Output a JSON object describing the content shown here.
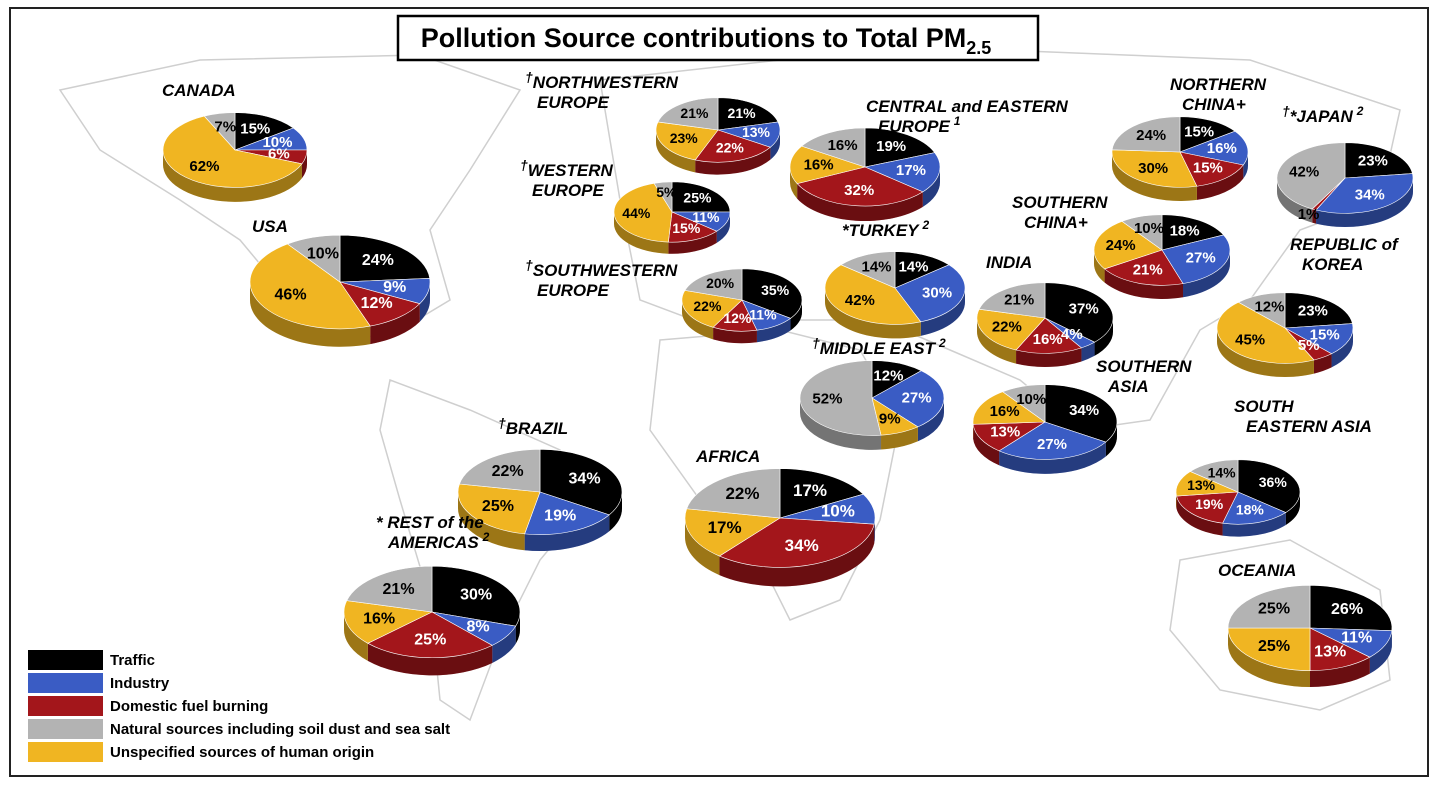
{
  "chart_data": {
    "type": "pie",
    "title": "Pollution Source contributions to Total PM",
    "title_subscript": "2.5",
    "categories": [
      "Traffic",
      "Industry",
      "Domestic fuel burning",
      "Natural sources including soil dust and sea salt",
      "Unspecified sources of human origin"
    ],
    "colors": [
      "#000000",
      "#3a5cc4",
      "#a3161b",
      "#b3b3b3",
      "#f0b522"
    ],
    "regions": [
      {
        "name": [
          "CANADA"
        ],
        "values": [
          15,
          10,
          6,
          7,
          62
        ],
        "value_labels": [
          "15%",
          "10%",
          "6%",
          "7%",
          "62%"
        ]
      },
      {
        "name": [
          "USA"
        ],
        "values": [
          24,
          9,
          12,
          10,
          46
        ],
        "value_labels": [
          "24%",
          "9%",
          "12%",
          "10%",
          "46%"
        ]
      },
      {
        "mark": "†",
        "name": [
          "NORTHWESTERN",
          "EUROPE"
        ],
        "values": [
          21,
          13,
          22,
          21,
          23
        ],
        "value_labels": [
          "21%",
          "13%",
          "22%",
          "21%",
          "23%"
        ]
      },
      {
        "mark": "†",
        "name": [
          "WESTERN",
          "EUROPE"
        ],
        "values": [
          25,
          11,
          15,
          5,
          44
        ],
        "value_labels": [
          "25%",
          "11%",
          "15%",
          "5%",
          "44%"
        ]
      },
      {
        "mark": "†",
        "name": [
          "SOUTHWESTERN",
          "EUROPE"
        ],
        "values": [
          35,
          11,
          12,
          20,
          22
        ],
        "value_labels": [
          "35%",
          "11%",
          "12%",
          "20%",
          "22%"
        ]
      },
      {
        "name": [
          "CENTRAL and EASTERN",
          "EUROPE"
        ],
        "note": "1",
        "values": [
          19,
          17,
          32,
          16,
          16
        ],
        "value_labels": [
          "19%",
          "17%",
          "32%",
          "16%",
          "16%"
        ]
      },
      {
        "name": [
          "*TURKEY"
        ],
        "note": "2",
        "values": [
          14,
          30,
          null,
          14,
          42
        ],
        "value_labels": [
          "14%",
          "30%",
          null,
          "14%",
          "42%"
        ]
      },
      {
        "mark": "†",
        "name": [
          "MIDDLE EAST"
        ],
        "note": "2",
        "values": [
          12,
          27,
          null,
          52,
          9
        ],
        "value_labels": [
          "12%",
          "27%",
          null,
          "52%",
          "9%"
        ]
      },
      {
        "name": [
          "NORTHERN",
          "CHINA+"
        ],
        "values": [
          15,
          16,
          15,
          24,
          30
        ],
        "value_labels": [
          "15%",
          "16%",
          "15%",
          "24%",
          "30%"
        ]
      },
      {
        "mark": "†",
        "name": [
          "*JAPAN"
        ],
        "note": "2",
        "values": [
          23,
          34,
          1,
          42,
          null
        ],
        "value_labels": [
          "23%",
          "34%",
          "1%",
          "42%",
          null
        ]
      },
      {
        "name": [
          "SOUTHERN",
          "CHINA+"
        ],
        "values": [
          18,
          27,
          21,
          10,
          24
        ],
        "value_labels": [
          "18%",
          "27%",
          "21%",
          "10%",
          "24%"
        ]
      },
      {
        "name": [
          "INDIA"
        ],
        "values": [
          37,
          4,
          16,
          21,
          22
        ],
        "value_labels": [
          "37%",
          "4%",
          "16%",
          "21%",
          "22%"
        ]
      },
      {
        "name": [
          "REPUBLIC of",
          "KOREA"
        ],
        "values": [
          23,
          15,
          5,
          12,
          45
        ],
        "value_labels": [
          "23%",
          "15%",
          "5%",
          "12%",
          "45%"
        ]
      },
      {
        "name": [
          "SOUTHERN",
          "ASIA"
        ],
        "values": [
          34,
          27,
          13,
          10,
          16
        ],
        "value_labels": [
          "34%",
          "27%",
          "13%",
          "10%",
          "16%"
        ]
      },
      {
        "name": [
          "SOUTH",
          "EASTERN ASIA"
        ],
        "values": [
          36,
          18,
          19,
          14,
          13
        ],
        "value_labels": [
          "36%",
          "18%",
          "19%",
          "14%",
          "13%"
        ]
      },
      {
        "name": [
          "OCEANIA"
        ],
        "values": [
          26,
          11,
          13,
          25,
          25
        ],
        "value_labels": [
          "26%",
          "11%",
          "13%",
          "25%",
          "25%"
        ]
      },
      {
        "mark": "†",
        "name": [
          "BRAZIL"
        ],
        "values": [
          34,
          19,
          null,
          22,
          25
        ],
        "value_labels": [
          "34%",
          "19%",
          null,
          "22%",
          "25%"
        ]
      },
      {
        "name": [
          "AFRICA"
        ],
        "values": [
          17,
          10,
          34,
          22,
          17
        ],
        "value_labels": [
          "17%",
          "10%",
          "34%",
          "22%",
          "17%"
        ]
      },
      {
        "name": [
          "* REST of the",
          "AMERICAS"
        ],
        "note": "2",
        "values": [
          30,
          8,
          25,
          21,
          16
        ],
        "value_labels": [
          "30%",
          "8%",
          "25%",
          "21%",
          "16%"
        ]
      }
    ]
  }
}
